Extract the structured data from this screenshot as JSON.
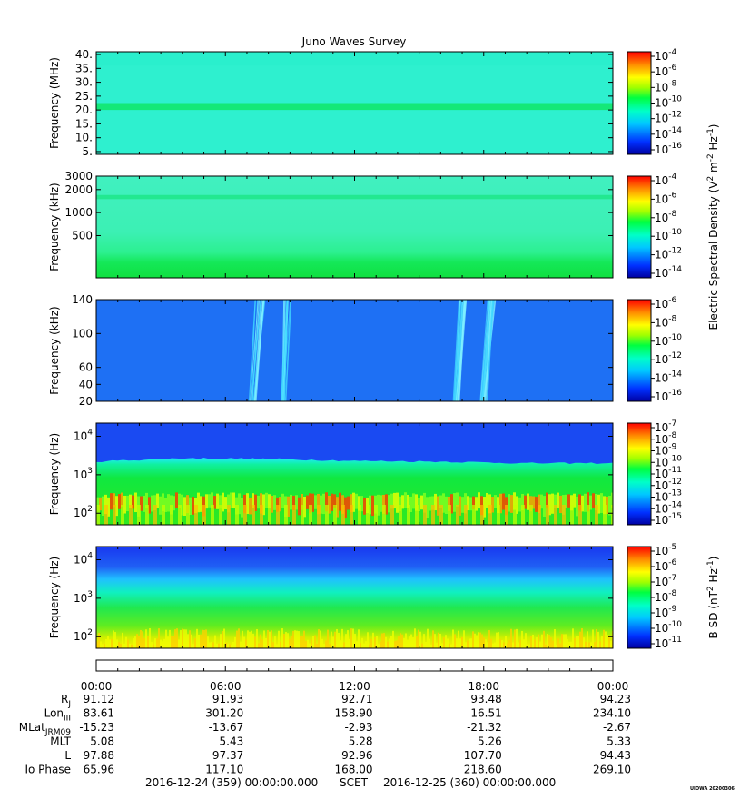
{
  "chart_data": {
    "type": "heatmap",
    "title": "Juno Waves Survey",
    "x_axis": {
      "tick_labels": [
        "00:00",
        "06:00",
        "12:00",
        "18:00",
        "00:00"
      ],
      "start": "2016-12-24 (359) 00:00:00.000",
      "end": "2016-12-25 (360) 00:00:00.000",
      "time_label": "SCET"
    },
    "panels": [
      {
        "ylabel": "Frequency (MHz)",
        "yscale": "linear",
        "ylim": [
          4,
          41
        ],
        "yticks": [
          {
            "label": "40.",
            "value": 40
          },
          {
            "label": "35.",
            "value": 35
          },
          {
            "label": "30.",
            "value": 30
          },
          {
            "label": "25.",
            "value": 25
          },
          {
            "label": "20.",
            "value": 20
          },
          {
            "label": "15.",
            "value": 15
          },
          {
            "label": "10.",
            "value": 10
          },
          {
            "label": "5.",
            "value": 5
          }
        ],
        "colorbar_exponents": [
          "-4",
          "-6",
          "-8",
          "-10",
          "-12",
          "-14",
          "-16"
        ],
        "features": [
          {
            "type": "band",
            "from": 20,
            "to": 22.5
          }
        ]
      },
      {
        "ylabel": "Frequency (kHz)",
        "yscale": "log",
        "ylim": [
          140,
          3000
        ],
        "yticks": [
          {
            "label": "3000",
            "value": 3000
          },
          {
            "label": "2000",
            "value": 2000
          },
          {
            "label": "1000",
            "value": 1000
          },
          {
            "label": "500",
            "value": 500
          }
        ],
        "colorbar_exponents": [
          "-4",
          "-6",
          "-8",
          "-10",
          "-12",
          "-14"
        ],
        "features": [
          {
            "type": "band",
            "from": 1500,
            "to": 1700
          },
          {
            "type": "band",
            "from": 170,
            "to": 300
          }
        ]
      },
      {
        "ylabel": "Frequency (kHz)",
        "yscale": "linear",
        "ylim": [
          20,
          140
        ],
        "yticks": [
          {
            "label": "140",
            "value": 140
          },
          {
            "label": "100",
            "value": 100
          },
          {
            "label": "60",
            "value": 60
          },
          {
            "label": "40",
            "value": 40
          },
          {
            "label": "20",
            "value": 20
          }
        ],
        "colorbar_exponents": [
          "-6",
          "-8",
          "-10",
          "-12",
          "-14",
          "-16"
        ],
        "features": [
          {
            "type": "burst",
            "start_hour": 7.1,
            "end_hour": 7.8
          },
          {
            "type": "burst",
            "start_hour": 8.6,
            "end_hour": 9.0
          },
          {
            "type": "burst",
            "start_hour": 16.6,
            "end_hour": 17.2
          },
          {
            "type": "burst",
            "start_hour": 17.8,
            "end_hour": 18.5
          }
        ]
      },
      {
        "ylabel": "Frequency (Hz)",
        "yscale": "log",
        "ylim": [
          50,
          22000
        ],
        "yticks": [
          {
            "label": "10",
            "exp": "4",
            "value": 10000
          },
          {
            "label": "10",
            "exp": "3",
            "value": 1000
          },
          {
            "label": "10",
            "exp": "2",
            "value": 100
          }
        ],
        "colorbar_exponents": [
          "-7",
          "-8",
          "-9",
          "-10",
          "-11",
          "-12",
          "-13",
          "-14",
          "-15"
        ],
        "features": [
          {
            "type": "cutoff",
            "hours": [
              0,
              4,
              8,
              12,
              16,
              20,
              24
            ],
            "freq_hz": [
              2200,
              2700,
              2600,
              2300,
              2200,
              2000,
              2000
            ]
          },
          {
            "type": "hot_band",
            "from": 100,
            "to": 350
          }
        ]
      },
      {
        "ylabel": "Frequency (Hz)",
        "yscale": "log",
        "ylim": [
          50,
          22000
        ],
        "yticks": [
          {
            "label": "10",
            "exp": "4",
            "value": 10000
          },
          {
            "label": "10",
            "exp": "3",
            "value": 1000
          },
          {
            "label": "10",
            "exp": "2",
            "value": 100
          }
        ],
        "colorbar_exponents": [
          "-5",
          "-6",
          "-7",
          "-8",
          "-9",
          "-10",
          "-11"
        ],
        "features": [
          {
            "type": "band",
            "from": 2500,
            "to": 5000
          },
          {
            "type": "band",
            "from": 50,
            "to": 150
          }
        ]
      }
    ],
    "colorbar_labels": [
      {
        "text": "Electric Spectral Density (V",
        "sup1": "2",
        "mid": " m",
        "sup2": "-2",
        "mid2": " Hz",
        "sup3": "-1",
        "end": ")"
      },
      {
        "text": "B SD (nT",
        "sup1": "2",
        "mid": " Hz",
        "sup2": "-1",
        "end": ")"
      }
    ],
    "ephemeris": {
      "rows": [
        {
          "label": "R",
          "sub": "J",
          "values": [
            "91.12",
            "91.93",
            "92.71",
            "93.48",
            "94.23"
          ]
        },
        {
          "label": "Lon",
          "sub": "III",
          "values": [
            "83.61",
            "301.20",
            "158.90",
            "16.51",
            "234.10"
          ]
        },
        {
          "label": "MLat",
          "sub": "JRM09",
          "values": [
            "-15.23",
            "-13.67",
            "-2.93",
            "-21.32",
            "-2.67"
          ]
        },
        {
          "label": "MLT",
          "sub": "",
          "values": [
            "5.08",
            "5.43",
            "5.28",
            "5.26",
            "5.33"
          ]
        },
        {
          "label": "L",
          "sub": "",
          "values": [
            "97.88",
            "97.37",
            "92.96",
            "107.70",
            "94.43"
          ]
        },
        {
          "label": "Io Phase",
          "sub": "",
          "values": [
            "65.96",
            "117.10",
            "168.00",
            "218.60",
            "269.10"
          ]
        }
      ]
    }
  },
  "stamp": "UIOWA 20200306"
}
